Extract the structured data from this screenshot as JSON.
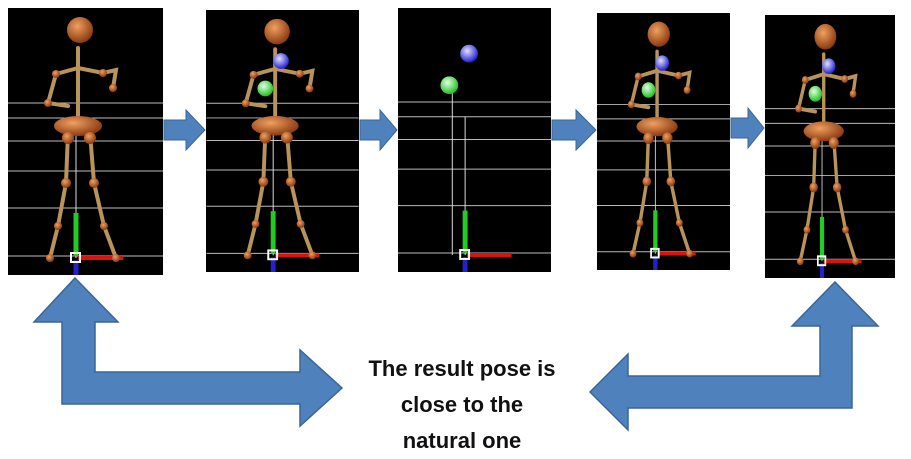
{
  "caption": {
    "lines": [
      "The result pose is",
      "close to the",
      "natural one"
    ]
  }
}
